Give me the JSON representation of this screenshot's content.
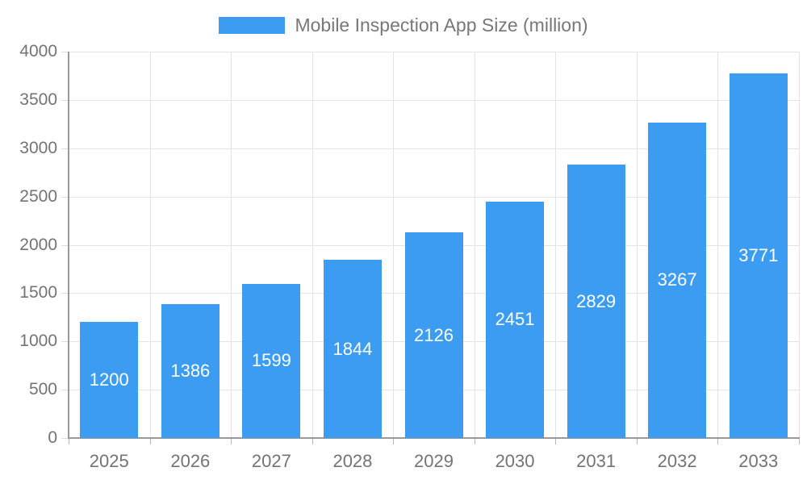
{
  "chart_data": {
    "type": "bar",
    "title": "Mobile Inspection App Size (million)",
    "legend": {
      "label": "Mobile Inspection App Size (million)",
      "position": "top-center"
    },
    "categories": [
      "2025",
      "2026",
      "2027",
      "2028",
      "2029",
      "2030",
      "2031",
      "2032",
      "2033"
    ],
    "series": [
      {
        "name": "Mobile Inspection App Size (million)",
        "values": [
          1200,
          1386,
          1599,
          1844,
          2126,
          2451,
          2829,
          3267,
          3771
        ]
      }
    ],
    "value_labels": [
      "1200",
      "1386",
      "1599",
      "1844",
      "2126",
      "2451",
      "2829",
      "3267",
      "3771"
    ],
    "xlabel": "",
    "ylabel": "",
    "ylim": [
      0,
      4000
    ],
    "y_ticks": [
      0,
      500,
      1000,
      1500,
      2000,
      2500,
      3000,
      3500,
      4000
    ],
    "grid": true,
    "legend_position": "top",
    "colors": {
      "bar": "#3B9CF2",
      "value_label": "#ffffff",
      "axis_text": "#737373",
      "legend_text": "#777777",
      "grid_line": "#e4e4e4",
      "axis_line": "#999999",
      "x_tick": "#b5b5b5",
      "y_tick": "#dddddd",
      "background": "#ffffff"
    }
  }
}
